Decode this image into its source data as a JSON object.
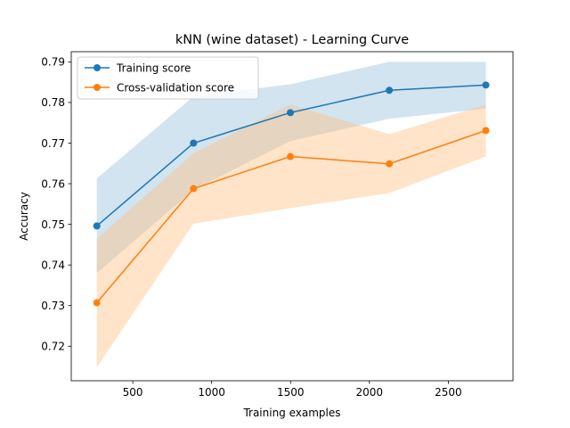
{
  "chart_data": {
    "type": "line",
    "title": "kNN (wine dataset) - Learning Curve",
    "xlabel": "Training examples",
    "ylabel": "Accuracy",
    "xlim": [
      110,
      2910
    ],
    "ylim": [
      0.7115,
      0.7925
    ],
    "xticks": [
      500,
      1000,
      1500,
      2000,
      2500
    ],
    "yticks": [
      0.72,
      0.73,
      0.74,
      0.75,
      0.76,
      0.77,
      0.78,
      0.79
    ],
    "x": [
      272,
      885,
      1499,
      2126,
      2738
    ],
    "legend_position": "upper-left",
    "grid": false,
    "series": [
      {
        "name": "Training score",
        "color": "#1f77b4",
        "fill_color": "#1f77b4",
        "values": [
          0.7496,
          0.77,
          0.7775,
          0.783,
          0.7843
        ],
        "band_upper": [
          0.7613,
          0.7815,
          0.7845,
          0.79,
          0.79
        ],
        "band_lower": [
          0.738,
          0.7585,
          0.7705,
          0.776,
          0.7785
        ]
      },
      {
        "name": "Cross-validation score",
        "color": "#ff7f0e",
        "fill_color": "#ffbb78",
        "values": [
          0.7307,
          0.7588,
          0.7667,
          0.7649,
          0.7731
        ],
        "band_upper": [
          0.7465,
          0.7675,
          0.7795,
          0.7722,
          0.7795
        ],
        "band_lower": [
          0.7148,
          0.7502,
          0.754,
          0.7577,
          0.7667
        ]
      }
    ]
  }
}
